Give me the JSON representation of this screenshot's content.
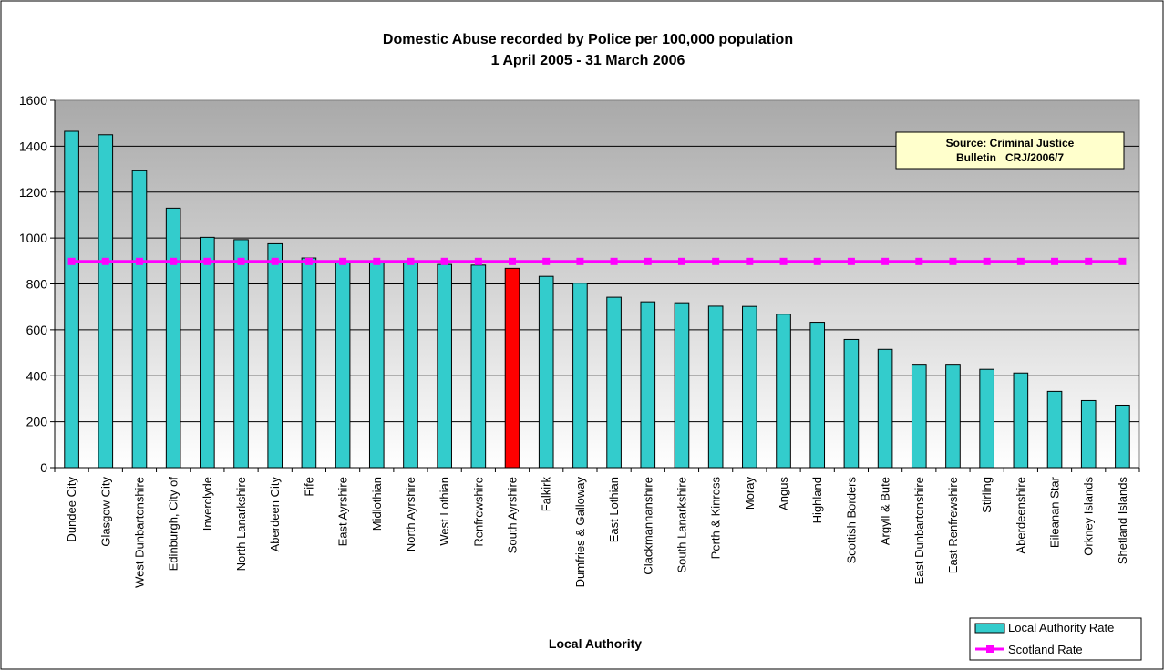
{
  "chart_data": {
    "type": "bar",
    "title_line1": "Domestic Abuse recorded by Police per 100,000 population",
    "title_line2": "1 April 2005 - 31 March 2006",
    "xlabel": "Local Authority",
    "ylabel": "",
    "ylim": [
      0,
      1600
    ],
    "yticks": [
      "0",
      "200",
      "400",
      "600",
      "800",
      "1000",
      "1200",
      "1400",
      "1600"
    ],
    "grid": true,
    "legend_position": "bottom-right",
    "note_line1": "Source: Criminal Justice",
    "note_line2": "Bulletin   CRJ/2006/7",
    "categories": [
      "Dundee City",
      "Glasgow City",
      "West Dunbartonshire",
      "Edinburgh, City of",
      "Inverclyde",
      "North Lanarkshire",
      "Aberdeen City",
      "Fife",
      "East Ayrshire",
      "Midlothian",
      "North Ayrshire",
      "West Lothian",
      "Renfrewshire",
      "South Ayrshire",
      "Falkirk",
      "Dumfries & Galloway",
      "East Lothian",
      "Clackmannanshire",
      "South Lanarkshire",
      "Perth & Kinross",
      "Moray",
      "Angus",
      "Highland",
      "Scottish Borders",
      "Argyll & Bute",
      "East Dunbartonshire",
      "East Renfrewshire",
      "Stirling",
      "Aberdeenshire",
      "Eileanan Star",
      "Orkney Islands",
      "Shetland Islands"
    ],
    "series": [
      {
        "name": "Local Authority Rate",
        "kind": "bar",
        "color": "#33cccc",
        "highlight_category": "South Ayrshire",
        "highlight_color": "#ff0000",
        "values": [
          1465,
          1450,
          1293,
          1130,
          1003,
          993,
          975,
          913,
          900,
          897,
          893,
          885,
          882,
          868,
          833,
          803,
          742,
          722,
          718,
          703,
          702,
          668,
          633,
          558,
          515,
          450,
          450,
          428,
          412,
          332,
          292,
          272
        ]
      },
      {
        "name": "Scotland Rate",
        "kind": "line",
        "color": "#ff00ff",
        "values": [
          898,
          898,
          898,
          898,
          898,
          898,
          898,
          898,
          898,
          898,
          898,
          898,
          898,
          898,
          898,
          898,
          898,
          898,
          898,
          898,
          898,
          898,
          898,
          898,
          898,
          898,
          898,
          898,
          898,
          898,
          898,
          898
        ]
      }
    ]
  }
}
